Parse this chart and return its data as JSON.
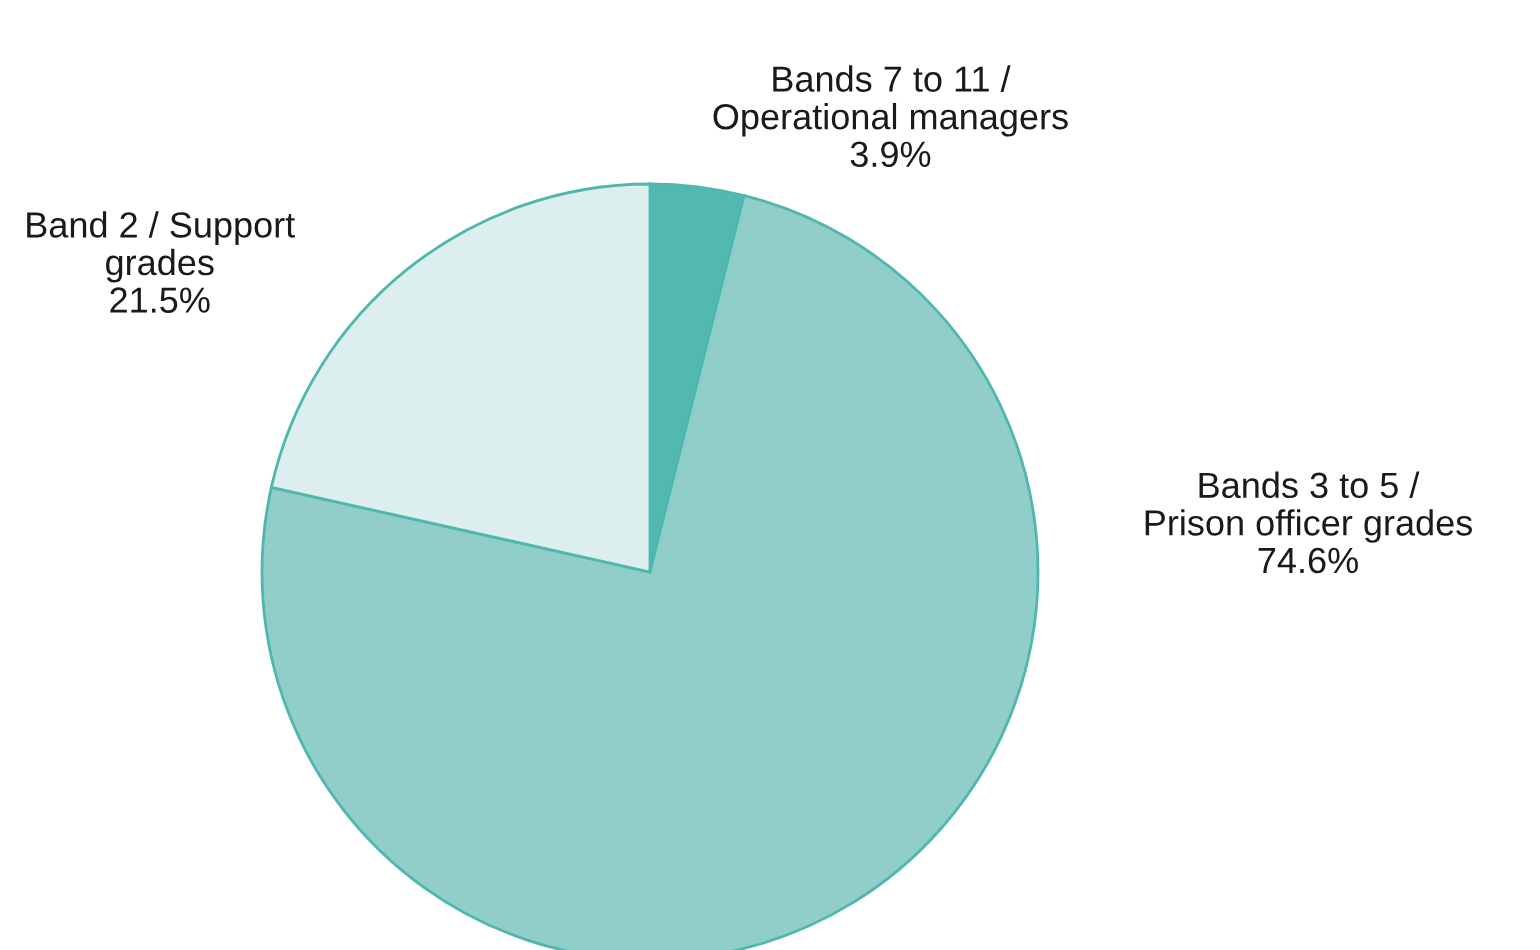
{
  "chart_data": {
    "type": "pie",
    "categories": [
      "Bands 7 to 11 /\nOperational managers",
      "Bands 3 to 5 /\nPrison officer grades",
      "Band 2 / Support\ngrades"
    ],
    "values": [
      3.9,
      74.6,
      21.5
    ],
    "value_labels": [
      "3.9%",
      "74.6%",
      "21.5%"
    ],
    "colors": [
      "#52b9b1",
      "#92cec9",
      "#dceeee"
    ]
  }
}
